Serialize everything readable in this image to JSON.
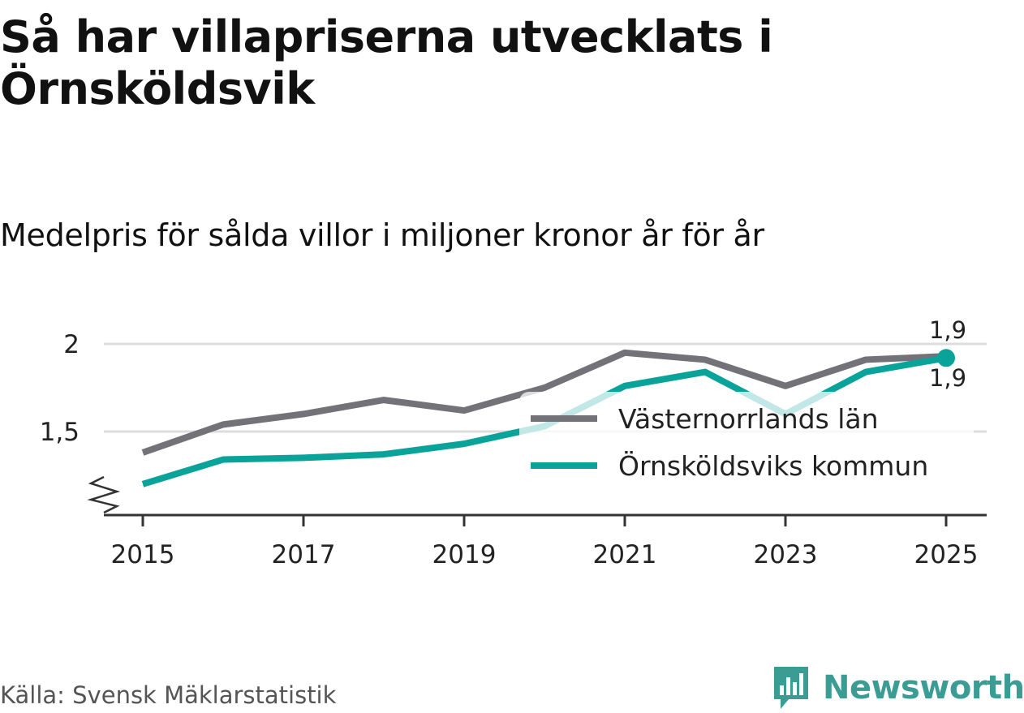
{
  "title": "Så har villapriserna utvecklats i Örnsköldsvik",
  "subtitle": "Medelpris för sålda villor i miljoner kronor år för år",
  "source": "Källa: Svensk Mäklarstatistik",
  "brand": "Newsworthy",
  "colors": {
    "county": "#737278",
    "municipality": "#0aa39a",
    "grid": "#dddddd",
    "axis": "#333333",
    "brand": "#3b9c94"
  },
  "chart_data": {
    "type": "line",
    "title": "Så har villapriserna utvecklats i Örnsköldsvik",
    "subtitle": "Medelpris för sålda villor i miljoner kronor år för år",
    "xlabel": "",
    "ylabel": "",
    "x": [
      2015,
      2016,
      2017,
      2018,
      2019,
      2020,
      2021,
      2022,
      2023,
      2024,
      2025
    ],
    "xticks": [
      "2015",
      "2017",
      "2019",
      "2021",
      "2023",
      "2025"
    ],
    "yticks": [
      1.5,
      2
    ],
    "ytick_labels": [
      "1,5",
      "2"
    ],
    "ylim": [
      1.05,
      2.05
    ],
    "axis_break": true,
    "grid": true,
    "legend_position": "right",
    "series": [
      {
        "name": "Västernorrlands län",
        "color": "#737278",
        "values": [
          1.38,
          1.54,
          1.6,
          1.68,
          1.62,
          1.75,
          1.95,
          1.91,
          1.76,
          1.91,
          1.93
        ],
        "end_label": "1,9"
      },
      {
        "name": "Örnsköldsviks kommun",
        "color": "#0aa39a",
        "values": [
          1.2,
          1.34,
          1.35,
          1.37,
          1.43,
          1.53,
          1.76,
          1.84,
          1.6,
          1.84,
          1.92
        ],
        "end_label": "1,9"
      }
    ]
  }
}
